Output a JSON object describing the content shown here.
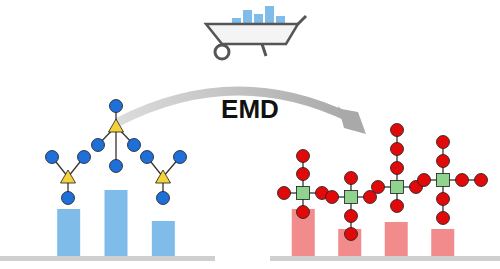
{
  "label": "EMD",
  "chart_data": [
    {
      "type": "bar",
      "categories": [
        null,
        null,
        null
      ],
      "values": [
        47,
        66,
        35
      ],
      "color": "#7fbce9",
      "ylim": [
        0,
        100
      ],
      "tick_labels": false
    },
    {
      "type": "bar",
      "categories": [
        null,
        null,
        null,
        null
      ],
      "values": [
        47,
        27,
        34,
        27
      ],
      "color": "#f28b8b",
      "ylim": [
        0,
        100
      ],
      "tick_labels": false
    }
  ]
}
